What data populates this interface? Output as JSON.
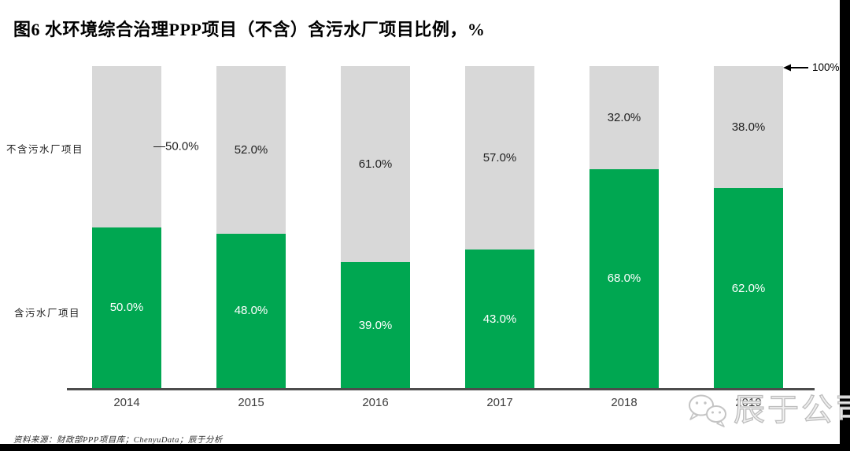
{
  "title": "图6 水环境综合治理PPP项目（不含）含污水厂项目比例，%",
  "chart_data": {
    "type": "bar",
    "stacked": true,
    "categories": [
      "2014",
      "2015",
      "2016",
      "2017",
      "2018",
      "2019"
    ],
    "series": [
      {
        "name": "含污水厂项目",
        "color": "#00a751",
        "values": [
          50,
          48,
          39,
          43,
          68,
          62
        ],
        "labels": [
          "50.0%",
          "48.0%",
          "39.0%",
          "43.0%",
          "68.0%",
          "62.0%"
        ],
        "label_outside": [
          false,
          false,
          false,
          false,
          false,
          false
        ]
      },
      {
        "name": "不含污水厂项目",
        "color": "#d8d8d8",
        "values": [
          50,
          52,
          61,
          57,
          32,
          38
        ],
        "labels": [
          "—50.0%",
          "52.0%",
          "61.0%",
          "57.0%",
          "32.0%",
          "38.0%"
        ],
        "label_outside": [
          true,
          false,
          false,
          false,
          false,
          false
        ]
      }
    ],
    "ylim": [
      0,
      100
    ],
    "ylabel": "%",
    "grid": false,
    "legend_position": "left-of-plot",
    "axis_annotation": "100%"
  },
  "series_labels": {
    "top": "不含污水厂项目",
    "bottom": "含污水厂项目"
  },
  "source": "资料来源：财政部PPP项目库；ChenyuData；辰于分析",
  "watermark": {
    "text": "辰于公司",
    "icon": "wechat-icon"
  },
  "colors": {
    "green": "#00a751",
    "gray": "#d8d8d8",
    "axis": "#4c4c4c"
  }
}
